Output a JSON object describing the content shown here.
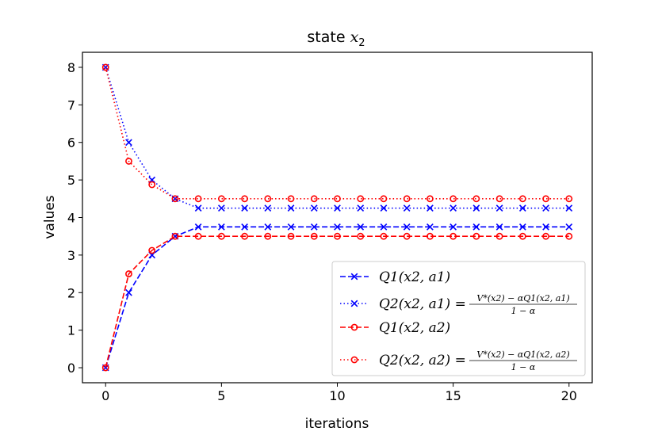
{
  "chart_data": {
    "type": "line",
    "title_prefix": "state ",
    "title_var": "x",
    "title_sub": "2",
    "xlabel": "iterations",
    "ylabel": "values",
    "xlim": [
      -1,
      21
    ],
    "ylim": [
      -0.4,
      8.4
    ],
    "xticks": [
      0,
      5,
      10,
      15,
      20
    ],
    "yticks": [
      0,
      1,
      2,
      3,
      4,
      5,
      6,
      7,
      8
    ],
    "grid": false,
    "legend_position": "lower right",
    "x": [
      0,
      1,
      2,
      3,
      4,
      5,
      6,
      7,
      8,
      9,
      10,
      11,
      12,
      13,
      14,
      15,
      16,
      17,
      18,
      19,
      20
    ],
    "series": [
      {
        "color": "#0000ff",
        "linestyle": "dashed",
        "marker": "x",
        "values": [
          0,
          2,
          3,
          3.5,
          3.75,
          3.75,
          3.75,
          3.75,
          3.75,
          3.75,
          3.75,
          3.75,
          3.75,
          3.75,
          3.75,
          3.75,
          3.75,
          3.75,
          3.75,
          3.75,
          3.75
        ]
      },
      {
        "color": "#0000ff",
        "linestyle": "dotted",
        "marker": "x",
        "values": [
          8,
          6,
          5,
          4.5,
          4.25,
          4.25,
          4.25,
          4.25,
          4.25,
          4.25,
          4.25,
          4.25,
          4.25,
          4.25,
          4.25,
          4.25,
          4.25,
          4.25,
          4.25,
          4.25,
          4.25
        ]
      },
      {
        "color": "#ff0000",
        "linestyle": "dashed",
        "marker": "o",
        "values": [
          0,
          2.5,
          3.125,
          3.5,
          3.5,
          3.5,
          3.5,
          3.5,
          3.5,
          3.5,
          3.5,
          3.5,
          3.5,
          3.5,
          3.5,
          3.5,
          3.5,
          3.5,
          3.5,
          3.5,
          3.5
        ]
      },
      {
        "color": "#ff0000",
        "linestyle": "dotted",
        "marker": "o",
        "values": [
          8,
          5.5,
          4.875,
          4.5,
          4.5,
          4.5,
          4.5,
          4.5,
          4.5,
          4.5,
          4.5,
          4.5,
          4.5,
          4.5,
          4.5,
          4.5,
          4.5,
          4.5,
          4.5,
          4.5,
          4.5
        ]
      }
    ],
    "legend": [
      {
        "lhs": "Q1(x2, a1)"
      },
      {
        "lhs": "Q2(x2, a1) =",
        "num": "V*(x2) − αQ1(x2, a1)",
        "den": "1 − α"
      },
      {
        "lhs": "Q1(x2, a2)"
      },
      {
        "lhs": "Q2(x2, a2) =",
        "num": "V*(x2) − αQ1(x2, a2)",
        "den": "1 − α"
      }
    ]
  }
}
